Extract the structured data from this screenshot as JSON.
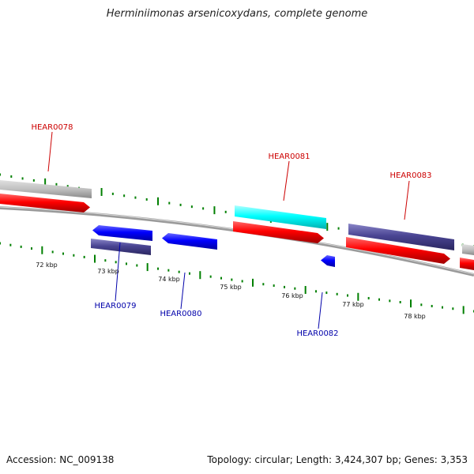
{
  "title": "Herminiimonas arsenicoxydans, complete genome",
  "footer": {
    "accession": "Accession: NC_009138",
    "summary": "Topology: circular; Length: 3,424,307 bp; Genes: 3,353"
  },
  "colors": {
    "forward_cds": "#ff0000",
    "reverse_cds": "#0000ff",
    "feature_gray": "#c0c0c0",
    "feature_slate": "#4a4593",
    "feature_cyan": "#00ffff",
    "tick_green": "#008000",
    "backbone": "#888888",
    "label_forward": "#cc0000",
    "label_reverse": "#0000aa"
  },
  "scale_labels": [
    "72 kbp",
    "73 kbp",
    "74 kbp",
    "75 kbp",
    "76 kbp",
    "77 kbp",
    "78 kbp"
  ],
  "gene_labels": [
    {
      "id": "HEAR0078",
      "strand": "forward"
    },
    {
      "id": "HEAR0079",
      "strand": "reverse"
    },
    {
      "id": "HEAR0080",
      "strand": "reverse"
    },
    {
      "id": "HEAR0081",
      "strand": "forward"
    },
    {
      "id": "HEAR0082",
      "strand": "reverse"
    },
    {
      "id": "HEAR0083",
      "strand": "forward"
    }
  ]
}
